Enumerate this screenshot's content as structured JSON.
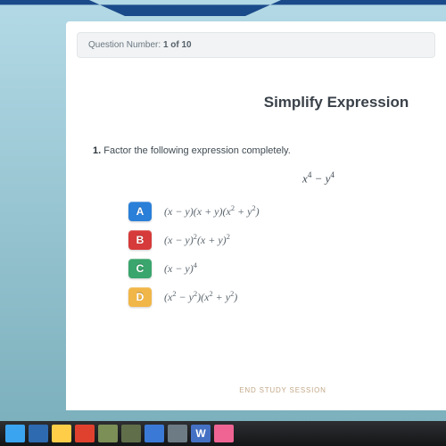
{
  "header": {
    "question_label": "Question Number:",
    "question_value": "1 of 10"
  },
  "page_title": "Simplify Expression",
  "question": {
    "number": "1.",
    "prompt": "Factor the following expression completely.",
    "expression_html": "x<sup>4</sup> &minus; y<sup>4</sup>"
  },
  "choices": [
    {
      "letter": "A",
      "color": "#2a7fd8",
      "html": "(x &minus; y)(x + y)(x<sup>2</sup> + y<sup>2</sup>)"
    },
    {
      "letter": "B",
      "color": "#d63a3a",
      "html": "(x &minus; y)<sup>2</sup>(x + y)<sup>2</sup>"
    },
    {
      "letter": "C",
      "color": "#3aa56c",
      "html": "(x &minus; y)<sup>4</sup>"
    },
    {
      "letter": "D",
      "color": "#f1b648",
      "html": "(x<sup>2</sup> &minus; y<sup>2</sup>)(x<sup>2</sup> + y<sup>2</sup>)"
    }
  ],
  "footer_link": "END STUDY SESSION",
  "colors": {
    "header_blue": "#1a4a8a",
    "content_bg": "#ffffff",
    "question_bar_bg": "#f1f3f4",
    "body_top": "#b3d9e6",
    "body_bottom": "#7aafbb"
  },
  "taskbar": {
    "bg_top": "#2d2f32",
    "bg_bottom": "#141517",
    "items": [
      {
        "name": "start",
        "color": "#3aa4f0"
      },
      {
        "name": "ie",
        "color": "#2e6ab0"
      },
      {
        "name": "folder",
        "color": "#ffcd48"
      },
      {
        "name": "app-red",
        "color": "#e0412f"
      },
      {
        "name": "app-green1",
        "color": "#7c8f57"
      },
      {
        "name": "app-green2",
        "color": "#606f4a"
      },
      {
        "name": "app-blue",
        "color": "#3b79d6"
      },
      {
        "name": "app-gray",
        "color": "#6d7b84"
      },
      {
        "name": "word",
        "color": "#4571c4",
        "glyph": "W"
      },
      {
        "name": "app-pink",
        "color": "#f06493"
      }
    ]
  }
}
